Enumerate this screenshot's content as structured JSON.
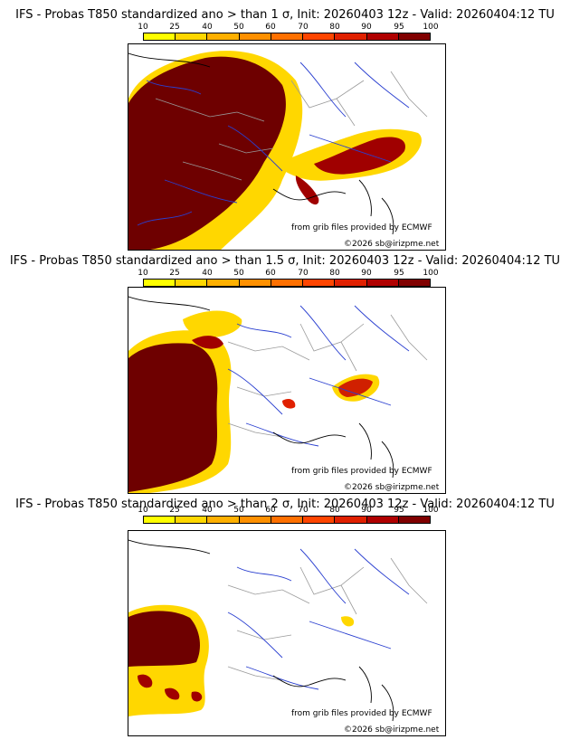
{
  "panels": [
    {
      "title": "IFS - Probas T850  standardized ano > than 1 σ, Init: 20260403 12z - Valid: 20260404:12 TU",
      "threshold": "1 σ"
    },
    {
      "title": "IFS - Probas T850  standardized ano > than 1.5 σ, Init: 20260403 12z - Valid: 20260404:12 TU",
      "threshold": "1.5 σ"
    },
    {
      "title": "IFS - Probas T850  standardized ano > than 2 σ, Init: 20260403 12z - Valid: 20260404:12 TU",
      "threshold": "2 σ"
    }
  ],
  "legend": {
    "ticks": [
      "10",
      "25",
      "40",
      "50",
      "60",
      "70",
      "80",
      "90",
      "95",
      "100"
    ],
    "colors": [
      "#ffff00",
      "#ffd700",
      "#ffb000",
      "#ff9000",
      "#ff7000",
      "#ff4500",
      "#e02000",
      "#b00000",
      "#800000",
      "#5a0000"
    ]
  },
  "credits": {
    "source": "from grib files provided by ECMWF",
    "copyright": "©2026 sb@irizpme.net"
  },
  "colors": {
    "border": "#9a9a9a",
    "rivers": "#2a3fd0",
    "coast": "#000000"
  }
}
